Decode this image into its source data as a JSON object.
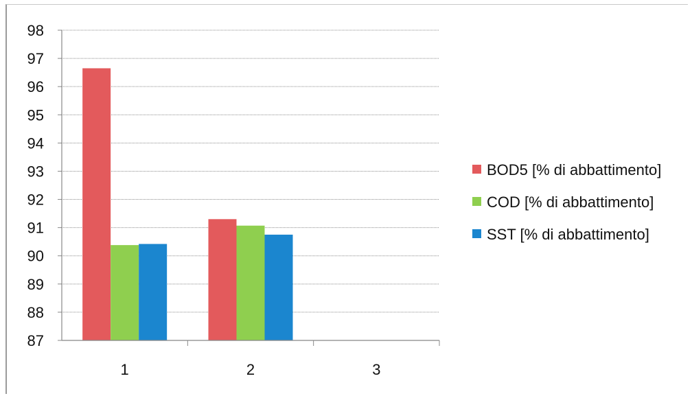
{
  "chart_data": {
    "type": "bar",
    "categories": [
      "1",
      "2",
      "3"
    ],
    "series": [
      {
        "name": "BOD5 [% di abbattimento]",
        "color": "#e35a5c",
        "values": [
          96.65,
          91.3,
          null
        ]
      },
      {
        "name": "COD [% di abbattimento]",
        "color": "#8fcf4f",
        "values": [
          90.38,
          91.07,
          null
        ]
      },
      {
        "name": "SST [% di abbattimento]",
        "color": "#1b86cf",
        "values": [
          90.42,
          90.75,
          null
        ]
      }
    ],
    "title": "",
    "xlabel": "",
    "ylabel": "",
    "ylim": [
      87,
      98
    ],
    "yticks": [
      "87",
      "88",
      "89",
      "90",
      "91",
      "92",
      "93",
      "94",
      "95",
      "96",
      "97",
      "98"
    ],
    "grid": true,
    "legend": "right"
  }
}
